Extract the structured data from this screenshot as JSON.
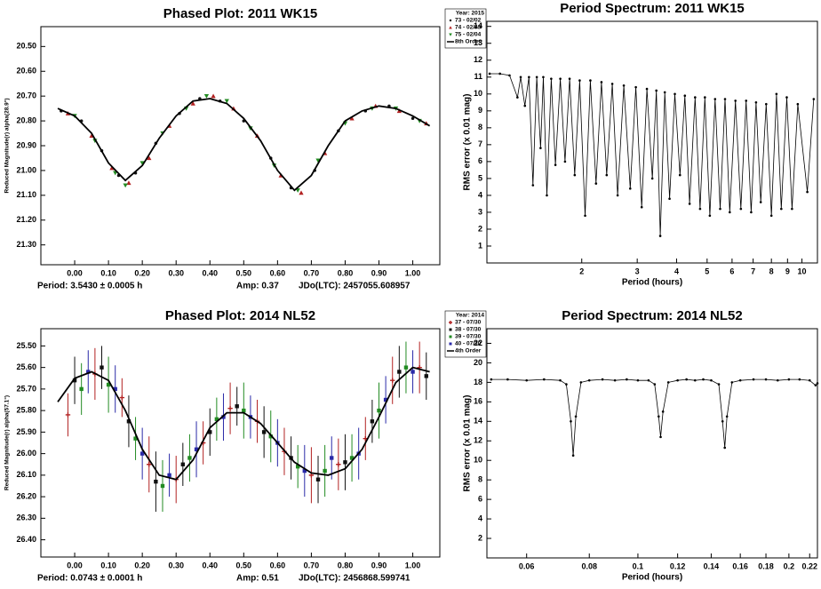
{
  "chart_data": [
    {
      "type": "scatter",
      "title": "Phased Plot: 2011 WK15",
      "ylabel": "Reduced Magnitude(r) alpha(28.9°)",
      "footer": [
        "Period: 3.5430 ± 0.0005 h",
        "Amp: 0.37",
        "JDo(LTC): 2457055.608957"
      ],
      "legend": "outside-right",
      "legend_title": "Year: 2015",
      "grid": false,
      "y_reversed": true,
      "xlim": [
        -0.1,
        1.08
      ],
      "ylim": [
        20.42,
        21.38
      ],
      "xticks": [
        {
          "value": 0,
          "label": "0.00"
        },
        {
          "value": 0.1,
          "label": "0.10"
        },
        {
          "value": 0.2,
          "label": "0.20"
        },
        {
          "value": 0.3,
          "label": "0.30"
        },
        {
          "value": 0.4,
          "label": "0.40"
        },
        {
          "value": 0.5,
          "label": "0.50"
        },
        {
          "value": 0.6,
          "label": "0.60"
        },
        {
          "value": 0.7,
          "label": "0.70"
        },
        {
          "value": 0.8,
          "label": "0.80"
        },
        {
          "value": 0.9,
          "label": "0.90"
        },
        {
          "value": 1,
          "label": "1.00"
        }
      ],
      "yticks": [
        {
          "value": 20.5,
          "label": "20.50"
        },
        {
          "value": 20.6,
          "label": "20.60"
        },
        {
          "value": 20.7,
          "label": "20.70"
        },
        {
          "value": 20.8,
          "label": "20.80"
        },
        {
          "value": 20.9,
          "label": "20.90"
        },
        {
          "value": 21,
          "label": "21.00"
        },
        {
          "value": 21.1,
          "label": "21.10"
        },
        {
          "value": 21.2,
          "label": "21.20"
        },
        {
          "value": 21.3,
          "label": "21.30"
        }
      ],
      "series": [
        {
          "name": "73 - 02/02",
          "color": "#111111",
          "marker": "dot",
          "x": [
            -0.04,
            0.02,
            0.08,
            0.13,
            0.18,
            0.24,
            0.31,
            0.37,
            0.43,
            0.5,
            0.58,
            0.64,
            0.71,
            0.78,
            0.86,
            0.93,
            1.0
          ],
          "values": [
            20.76,
            20.8,
            20.92,
            21.02,
            21.01,
            20.89,
            20.77,
            20.71,
            20.72,
            20.8,
            20.95,
            21.07,
            21.0,
            20.84,
            20.76,
            20.74,
            20.79
          ]
        },
        {
          "name": "74 - 02/03",
          "color": "#b22222",
          "marker": "triangle",
          "x": [
            -0.02,
            0.05,
            0.11,
            0.16,
            0.22,
            0.28,
            0.35,
            0.41,
            0.47,
            0.54,
            0.61,
            0.67,
            0.74,
            0.82,
            0.89,
            0.96,
            1.04
          ],
          "values": [
            20.77,
            20.86,
            20.99,
            21.05,
            20.95,
            20.82,
            20.73,
            20.7,
            20.75,
            20.86,
            21.02,
            21.09,
            20.93,
            20.79,
            20.74,
            20.76,
            20.81
          ]
        },
        {
          "name": "75 - 02/04",
          "color": "#228b22",
          "marker": "triangle-down",
          "x": [
            0.0,
            0.06,
            0.12,
            0.15,
            0.2,
            0.26,
            0.33,
            0.39,
            0.45,
            0.52,
            0.59,
            0.66,
            0.72,
            0.8,
            0.88,
            0.95,
            1.02
          ],
          "values": [
            20.78,
            20.88,
            21.01,
            21.06,
            20.97,
            20.85,
            20.75,
            20.7,
            20.72,
            20.83,
            20.98,
            21.08,
            20.96,
            20.81,
            20.75,
            20.75,
            20.8
          ]
        }
      ],
      "fit": {
        "name": "8th Order",
        "color": "#000000",
        "x": [
          -0.05,
          0,
          0.05,
          0.1,
          0.15,
          0.2,
          0.25,
          0.3,
          0.35,
          0.4,
          0.45,
          0.5,
          0.55,
          0.6,
          0.65,
          0.7,
          0.75,
          0.8,
          0.85,
          0.9,
          0.95,
          1.0,
          1.05
        ],
        "values": [
          20.75,
          20.78,
          20.85,
          20.97,
          21.04,
          20.98,
          20.87,
          20.78,
          20.72,
          20.71,
          20.73,
          20.79,
          20.88,
          21.0,
          21.08,
          21.02,
          20.9,
          20.8,
          20.76,
          20.74,
          20.75,
          20.78,
          20.82
        ]
      }
    },
    {
      "type": "line",
      "title": "Period Spectrum: 2011 WK15",
      "xlabel": "Period (hours)",
      "ylabel": "RMS error (x 0.01 mag)",
      "xscale": "log",
      "grid": false,
      "color": "#000000",
      "markers": true,
      "xlim": [
        1.0,
        11.2
      ],
      "ylim": [
        0,
        14.3
      ],
      "xticks": [
        2,
        3,
        4,
        5,
        6,
        7,
        8,
        9,
        10
      ],
      "yticks": [
        1,
        2,
        3,
        4,
        5,
        6,
        7,
        8,
        9,
        10,
        11,
        12,
        13,
        14
      ],
      "x": [
        1.02,
        1.1,
        1.18,
        1.25,
        1.28,
        1.32,
        1.36,
        1.4,
        1.44,
        1.48,
        1.51,
        1.55,
        1.6,
        1.65,
        1.71,
        1.77,
        1.83,
        1.9,
        1.97,
        2.05,
        2.13,
        2.22,
        2.31,
        2.4,
        2.5,
        2.6,
        2.72,
        2.85,
        2.97,
        3.1,
        3.22,
        3.35,
        3.45,
        3.55,
        3.67,
        3.8,
        3.95,
        4.1,
        4.25,
        4.4,
        4.58,
        4.75,
        4.92,
        5.1,
        5.3,
        5.5,
        5.7,
        5.9,
        6.15,
        6.4,
        6.65,
        6.9,
        7.15,
        7.4,
        7.7,
        8.0,
        8.3,
        8.6,
        8.95,
        9.3,
        9.7,
        10.4,
        10.9
      ],
      "values": [
        11.2,
        11.2,
        11.1,
        9.8,
        11.0,
        9.3,
        11.0,
        4.6,
        11.0,
        6.8,
        11.0,
        4.0,
        10.9,
        5.8,
        10.9,
        6.0,
        10.9,
        5.2,
        10.8,
        2.8,
        10.8,
        4.7,
        10.7,
        5.2,
        10.6,
        4.0,
        10.5,
        4.4,
        10.4,
        3.3,
        10.3,
        5.0,
        10.2,
        1.6,
        10.1,
        3.8,
        10.0,
        5.2,
        9.9,
        3.5,
        9.8,
        3.2,
        9.8,
        2.8,
        9.7,
        3.2,
        9.7,
        3.0,
        9.6,
        3.2,
        9.6,
        3.0,
        9.5,
        3.6,
        9.4,
        2.8,
        10.0,
        3.2,
        9.8,
        3.2,
        9.4,
        4.2,
        9.7
      ]
    },
    {
      "type": "scatter",
      "title": "Phased Plot: 2014 NL52",
      "ylabel": "Reduced Magnitude(r) alpha(57.1°)",
      "footer": [
        "Period: 0.0743 ± 0.0001 h",
        "Amp: 0.51",
        "JDo(LTC): 2456868.599741"
      ],
      "legend": "outside-right",
      "legend_title": "Year: 2014",
      "grid": false,
      "y_reversed": true,
      "xlim": [
        -0.1,
        1.08
      ],
      "ylim": [
        25.42,
        26.48
      ],
      "xticks": [
        {
          "value": 0,
          "label": "0.00"
        },
        {
          "value": 0.1,
          "label": "0.10"
        },
        {
          "value": 0.2,
          "label": "0.20"
        },
        {
          "value": 0.3,
          "label": "0.30"
        },
        {
          "value": 0.4,
          "label": "0.40"
        },
        {
          "value": 0.5,
          "label": "0.50"
        },
        {
          "value": 0.6,
          "label": "0.60"
        },
        {
          "value": 0.7,
          "label": "0.70"
        },
        {
          "value": 0.8,
          "label": "0.80"
        },
        {
          "value": 0.9,
          "label": "0.90"
        },
        {
          "value": 1,
          "label": "1.00"
        }
      ],
      "yticks": [
        {
          "value": 25.5,
          "label": "25.50"
        },
        {
          "value": 25.6,
          "label": "25.60"
        },
        {
          "value": 25.7,
          "label": "25.70"
        },
        {
          "value": 25.8,
          "label": "25.80"
        },
        {
          "value": 25.9,
          "label": "25.90"
        },
        {
          "value": 26,
          "label": "26.00"
        },
        {
          "value": 26.1,
          "label": "26.10"
        },
        {
          "value": 26.2,
          "label": "26.20"
        },
        {
          "value": 26.3,
          "label": "26.30"
        },
        {
          "value": 26.4,
          "label": "26.40"
        }
      ],
      "series": [
        {
          "name": "37 - 07/30",
          "color": "#b22222",
          "marker": "plus",
          "x": [
            -0.02,
            0.06,
            0.14,
            0.22,
            0.3,
            0.38,
            0.46,
            0.54,
            0.62,
            0.7,
            0.78,
            0.86,
            0.94,
            1.02
          ],
          "values": [
            25.82,
            25.63,
            25.74,
            26.05,
            26.12,
            25.95,
            25.79,
            25.85,
            25.99,
            26.1,
            26.05,
            25.93,
            25.66,
            25.6
          ],
          "errors": [
            0.1,
            0.12,
            0.09,
            0.13,
            0.11,
            0.1,
            0.12,
            0.1,
            0.11,
            0.13,
            0.12,
            0.1,
            0.11,
            0.12
          ]
        },
        {
          "name": "38 - 07/30",
          "color": "#111111",
          "marker": "square",
          "x": [
            0.0,
            0.08,
            0.16,
            0.24,
            0.32,
            0.4,
            0.48,
            0.56,
            0.64,
            0.72,
            0.8,
            0.88,
            0.96,
            1.04
          ],
          "values": [
            25.66,
            25.6,
            25.85,
            26.13,
            26.05,
            25.9,
            25.78,
            25.9,
            26.02,
            26.12,
            26.04,
            25.85,
            25.62,
            25.64
          ],
          "errors": [
            0.11,
            0.1,
            0.12,
            0.14,
            0.1,
            0.11,
            0.09,
            0.12,
            0.1,
            0.11,
            0.13,
            0.1,
            0.12,
            0.11
          ]
        },
        {
          "name": "39 - 07/30",
          "color": "#228b22",
          "marker": "square",
          "x": [
            0.02,
            0.1,
            0.18,
            0.26,
            0.34,
            0.42,
            0.5,
            0.58,
            0.66,
            0.74,
            0.82,
            0.9,
            0.98
          ],
          "values": [
            25.7,
            25.68,
            25.93,
            26.15,
            26.02,
            25.84,
            25.8,
            25.92,
            26.06,
            26.08,
            26.02,
            25.8,
            25.6
          ],
          "errors": [
            0.12,
            0.13,
            0.1,
            0.12,
            0.11,
            0.1,
            0.13,
            0.12,
            0.1,
            0.12,
            0.11,
            0.13,
            0.12
          ]
        },
        {
          "name": "40 - 07/30",
          "color": "#2a2aa8",
          "marker": "square",
          "x": [
            0.04,
            0.12,
            0.2,
            0.28,
            0.36,
            0.44,
            0.52,
            0.6,
            0.68,
            0.76,
            0.84,
            0.92,
            1.0
          ],
          "values": [
            25.62,
            25.7,
            26.0,
            26.1,
            25.98,
            25.83,
            25.83,
            25.95,
            26.08,
            26.02,
            26.0,
            25.75,
            25.62
          ],
          "errors": [
            0.1,
            0.11,
            0.12,
            0.1,
            0.13,
            0.11,
            0.1,
            0.11,
            0.12,
            0.1,
            0.12,
            0.11,
            0.1
          ]
        }
      ],
      "fit": {
        "name": "4th Order",
        "color": "#000000",
        "x": [
          -0.05,
          0,
          0.05,
          0.1,
          0.15,
          0.2,
          0.25,
          0.3,
          0.35,
          0.4,
          0.45,
          0.5,
          0.55,
          0.6,
          0.65,
          0.7,
          0.75,
          0.8,
          0.85,
          0.9,
          0.95,
          1.0,
          1.05
        ],
        "values": [
          25.76,
          25.65,
          25.62,
          25.66,
          25.8,
          25.98,
          26.1,
          26.12,
          26.03,
          25.88,
          25.81,
          25.81,
          25.86,
          25.95,
          26.04,
          26.09,
          26.1,
          26.07,
          25.98,
          25.83,
          25.67,
          25.6,
          25.62
        ]
      }
    },
    {
      "type": "line",
      "title": "Period Spectrum: 2014 NL52",
      "xlabel": "Period (hours)",
      "ylabel": "RMS error (x 0.01 mag)",
      "xscale": "log",
      "grid": false,
      "color": "#000000",
      "markers": true,
      "xlim": [
        0.05,
        0.228
      ],
      "ylim": [
        0,
        23.5
      ],
      "xticks": [
        0.06,
        0.08,
        0.1,
        0.12,
        0.14,
        0.16,
        0.18,
        0.2,
        0.22
      ],
      "yticks": [
        2,
        4,
        6,
        8,
        10,
        12,
        14,
        16,
        18,
        20,
        22
      ],
      "x": [
        0.051,
        0.055,
        0.06,
        0.065,
        0.07,
        0.072,
        0.0735,
        0.0743,
        0.0752,
        0.077,
        0.08,
        0.085,
        0.09,
        0.095,
        0.1,
        0.105,
        0.108,
        0.11,
        0.111,
        0.1122,
        0.115,
        0.12,
        0.125,
        0.13,
        0.135,
        0.14,
        0.145,
        0.1475,
        0.149,
        0.1505,
        0.154,
        0.16,
        0.17,
        0.18,
        0.19,
        0.2,
        0.21,
        0.22,
        0.226,
        0.228
      ],
      "values": [
        18.3,
        18.3,
        18.2,
        18.3,
        18.2,
        17.8,
        14,
        10.5,
        14.5,
        18.0,
        18.2,
        18.3,
        18.2,
        18.3,
        18.2,
        18.2,
        17.8,
        14.5,
        12.4,
        15,
        18.0,
        18.2,
        18.3,
        18.2,
        18.3,
        18.2,
        17.8,
        14,
        11.3,
        14.5,
        18.0,
        18.2,
        18.3,
        18.3,
        18.2,
        18.3,
        18.3,
        18.2,
        17.7,
        17.9
      ]
    }
  ]
}
